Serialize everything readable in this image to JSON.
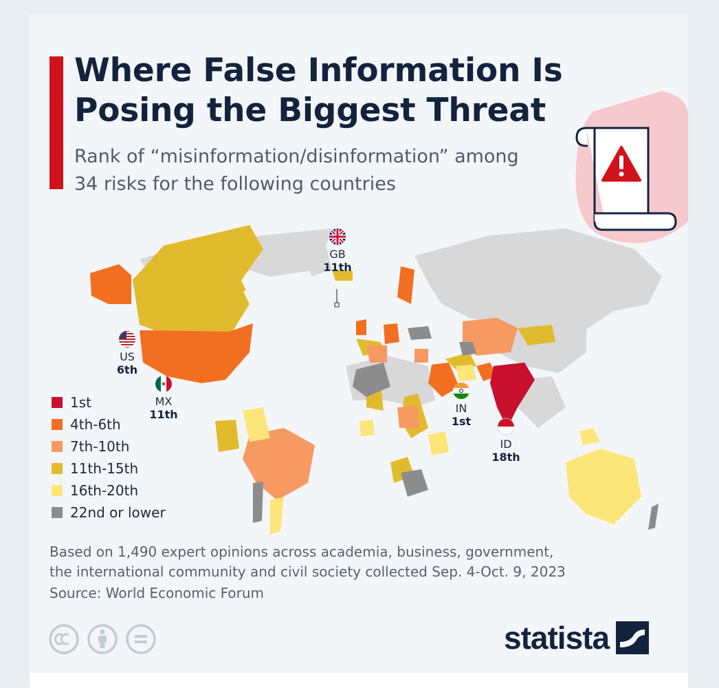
{
  "header": {
    "title_line1": "Where False Information Is",
    "title_line2": "Posing the Biggest Threat",
    "subtitle_line1": "Rank of “misinformation/disinformation” among",
    "subtitle_line2": "34 risks for the following countries"
  },
  "colors": {
    "rank_1": "#c8102e",
    "rank_4_6": "#f26f21",
    "rank_7_10": "#f69a62",
    "rank_11_15": "#e1bb2e",
    "rank_16_20": "#fce679",
    "rank_22_lower": "#8c8c8c",
    "no_data": "#d8d8d8",
    "accent_red": "#d0121b",
    "navy": "#13233e"
  },
  "legend": {
    "items": [
      {
        "label": "1st",
        "color": "#c8102e"
      },
      {
        "label": "4th-6th",
        "color": "#f26f21"
      },
      {
        "label": "7th-10th",
        "color": "#f69a62"
      },
      {
        "label": "11th-15th",
        "color": "#e1bb2e"
      },
      {
        "label": "16th-20th",
        "color": "#fce679"
      },
      {
        "label": "22nd or lower",
        "color": "#8c8c8c"
      }
    ]
  },
  "markers": {
    "gb": {
      "code": "GB",
      "rank": "11th",
      "flag": "uk-flag"
    },
    "us": {
      "code": "US",
      "rank": "6th",
      "flag": "us-flag"
    },
    "mx": {
      "code": "MX",
      "rank": "11th",
      "flag": "mexico-flag"
    },
    "in": {
      "code": "IN",
      "rank": "1st",
      "flag": "india-flag"
    },
    "id": {
      "code": "ID",
      "rank": "18th",
      "flag": "indonesia-flag"
    }
  },
  "footer": {
    "note_line1": "Based on 1,490 expert opinions across academia, business, government,",
    "note_line2": "the international community and civil society collected Sep. 4-Oct. 9, 2023",
    "source": "Source: World Economic Forum",
    "license_icons": [
      "creative-commons-icon",
      "attribution-icon",
      "no-derivatives-icon"
    ]
  },
  "brand": {
    "name": "statista",
    "icon": "statista-logo-icon"
  }
}
